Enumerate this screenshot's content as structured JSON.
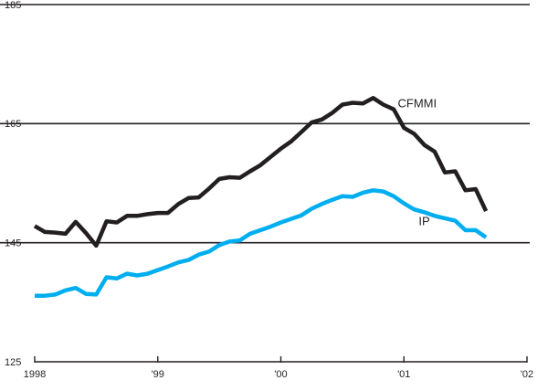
{
  "chart_data": {
    "type": "line",
    "title": "",
    "xlabel": "",
    "ylabel": "",
    "xlim": [
      1998,
      2002
    ],
    "ylim": [
      125,
      185
    ],
    "grid_y": [
      145,
      165,
      185
    ],
    "y_ticks": [
      {
        "value": 125,
        "label": "125"
      },
      {
        "value": 145,
        "label": "145"
      },
      {
        "value": 165,
        "label": "165"
      },
      {
        "value": 185,
        "label": "185"
      }
    ],
    "x_ticks": [
      {
        "value": 1998,
        "label": "1998"
      },
      {
        "value": 1999,
        "label": "'99"
      },
      {
        "value": 2000,
        "label": "'00"
      },
      {
        "value": 2001,
        "label": "'01"
      },
      {
        "value": 2002,
        "label": "'02"
      }
    ],
    "series": [
      {
        "name": "CFMMI",
        "color": "#231f20",
        "label_at": {
          "x": 2000.95,
          "y": 168.3
        },
        "points": [
          [
            1998.0,
            147.8
          ],
          [
            1998.083,
            146.8
          ],
          [
            1998.167,
            146.7
          ],
          [
            1998.25,
            146.5
          ],
          [
            1998.333,
            148.5
          ],
          [
            1998.417,
            146.6
          ],
          [
            1998.5,
            144.5
          ],
          [
            1998.583,
            148.6
          ],
          [
            1998.667,
            148.4
          ],
          [
            1998.75,
            149.5
          ],
          [
            1998.833,
            149.5
          ],
          [
            1998.917,
            149.8
          ],
          [
            1999.0,
            150.0
          ],
          [
            1999.083,
            150.0
          ],
          [
            1999.167,
            151.5
          ],
          [
            1999.25,
            152.5
          ],
          [
            1999.333,
            152.6
          ],
          [
            1999.417,
            154.1
          ],
          [
            1999.5,
            155.7
          ],
          [
            1999.583,
            156.0
          ],
          [
            1999.667,
            155.9
          ],
          [
            1999.75,
            157.0
          ],
          [
            1999.833,
            158.0
          ],
          [
            1999.917,
            159.4
          ],
          [
            2000.0,
            160.8
          ],
          [
            2000.083,
            162.0
          ],
          [
            2000.167,
            163.6
          ],
          [
            2000.25,
            165.2
          ],
          [
            2000.333,
            165.7
          ],
          [
            2000.417,
            166.8
          ],
          [
            2000.5,
            168.2
          ],
          [
            2000.583,
            168.5
          ],
          [
            2000.667,
            168.4
          ],
          [
            2000.75,
            169.3
          ],
          [
            2000.833,
            168.2
          ],
          [
            2000.917,
            167.4
          ],
          [
            2001.0,
            164.3
          ],
          [
            2001.083,
            163.3
          ],
          [
            2001.167,
            161.4
          ],
          [
            2001.25,
            160.3
          ],
          [
            2001.333,
            156.8
          ],
          [
            2001.417,
            157.0
          ],
          [
            2001.5,
            153.8
          ],
          [
            2001.583,
            154.0
          ],
          [
            2001.667,
            150.3
          ]
        ]
      },
      {
        "name": "IP",
        "color": "#00aeef",
        "label_at": {
          "x": 2001.12,
          "y": 148.5
        },
        "points": [
          [
            1998.0,
            136.1
          ],
          [
            1998.083,
            136.1
          ],
          [
            1998.167,
            136.3
          ],
          [
            1998.25,
            137.0
          ],
          [
            1998.333,
            137.4
          ],
          [
            1998.417,
            136.4
          ],
          [
            1998.5,
            136.3
          ],
          [
            1998.583,
            139.2
          ],
          [
            1998.667,
            139.0
          ],
          [
            1998.75,
            139.8
          ],
          [
            1998.833,
            139.5
          ],
          [
            1998.917,
            139.8
          ],
          [
            1999.0,
            140.4
          ],
          [
            1999.083,
            141.0
          ],
          [
            1999.167,
            141.7
          ],
          [
            1999.25,
            142.1
          ],
          [
            1999.333,
            143.0
          ],
          [
            1999.417,
            143.5
          ],
          [
            1999.5,
            144.6
          ],
          [
            1999.583,
            145.2
          ],
          [
            1999.667,
            145.4
          ],
          [
            1999.75,
            146.5
          ],
          [
            1999.833,
            147.1
          ],
          [
            1999.917,
            147.7
          ],
          [
            2000.0,
            148.4
          ],
          [
            2000.083,
            149.0
          ],
          [
            2000.167,
            149.6
          ],
          [
            2000.25,
            150.7
          ],
          [
            2000.333,
            151.5
          ],
          [
            2000.417,
            152.2
          ],
          [
            2000.5,
            152.8
          ],
          [
            2000.583,
            152.7
          ],
          [
            2000.667,
            153.4
          ],
          [
            2000.75,
            153.8
          ],
          [
            2000.833,
            153.6
          ],
          [
            2000.917,
            152.8
          ],
          [
            2001.0,
            151.6
          ],
          [
            2001.083,
            150.6
          ],
          [
            2001.167,
            150.1
          ],
          [
            2001.25,
            149.5
          ],
          [
            2001.333,
            149.1
          ],
          [
            2001.417,
            148.7
          ],
          [
            2001.5,
            147.1
          ],
          [
            2001.583,
            147.1
          ],
          [
            2001.667,
            145.9
          ]
        ]
      }
    ]
  }
}
